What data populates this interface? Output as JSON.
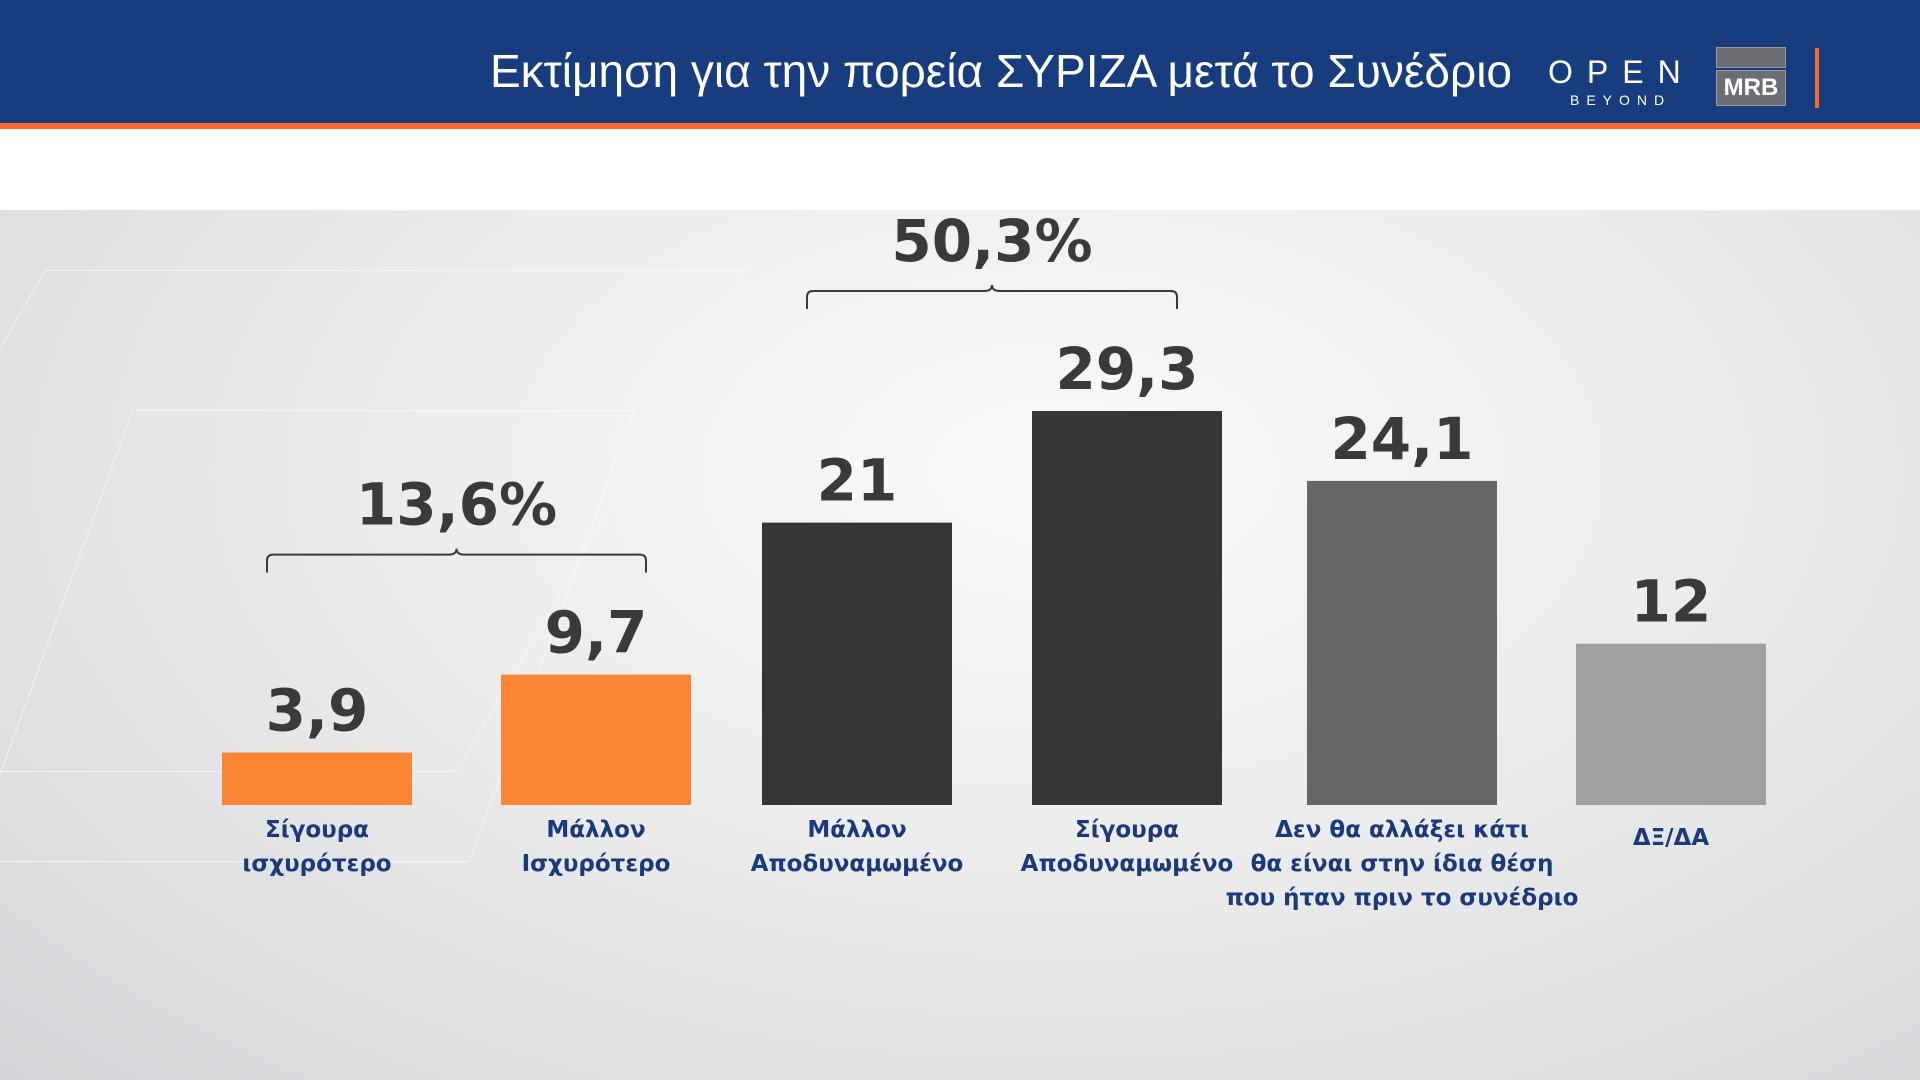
{
  "header": {
    "title": "Εκτίμηση για την πορεία ΣΥΡΙΖΑ μετά το Συνέδριο",
    "logo_open": "OPEN",
    "logo_open_sub": "BEYOND",
    "logo_mrb": "MRB"
  },
  "colors": {
    "header": "#173d7e",
    "accent": "#f5692a",
    "category_text": "#1b3a7c"
  },
  "chart_data": {
    "type": "bar",
    "categories": [
      [
        "Σίγουρα",
        "ισχυρότερο"
      ],
      [
        "Μάλλον",
        "Ισχυρότερο"
      ],
      [
        "Μάλλον",
        "Αποδυναμωμένο"
      ],
      [
        "Σίγουρα",
        "Αποδυναμωμένο"
      ],
      [
        "Δεν θα αλλάξει κάτι",
        "θα είναι στην ίδια θέση",
        "που ήταν πριν το συνέδριο"
      ],
      [
        "ΔΞ/ΔΑ"
      ]
    ],
    "values": [
      3.9,
      9.7,
      21,
      29.3,
      24.1,
      12
    ],
    "value_labels": [
      "3,9",
      "9,7",
      "21",
      "29,3",
      "24,1",
      "12"
    ],
    "bar_colors": [
      "#f98535",
      "#f98535",
      "#363636",
      "#363636",
      "#666666",
      "#a0a0a0"
    ],
    "groups": [
      {
        "label": "13,6%",
        "from": 0,
        "to": 1
      },
      {
        "label": "50,3%",
        "from": 2,
        "to": 3
      }
    ],
    "title": "",
    "xlabel": "",
    "ylabel": "",
    "ylim": [
      0,
      29.3
    ],
    "grid": false
  }
}
